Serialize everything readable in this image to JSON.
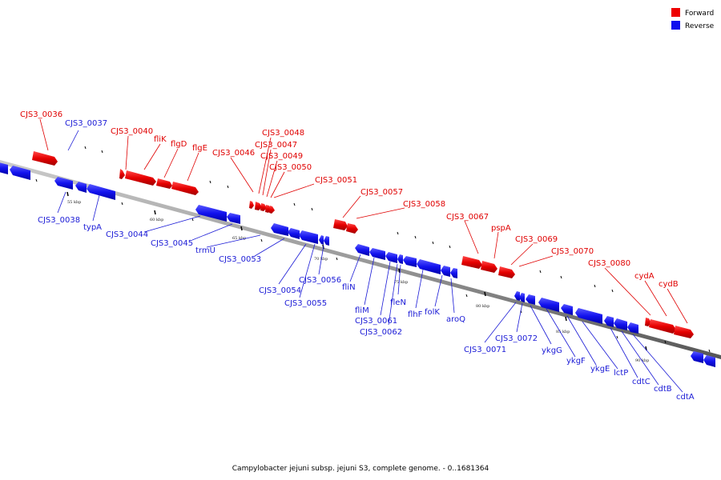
{
  "legend": {
    "forward_label": "Forward",
    "reverse_label": "Reverse",
    "forward_color": "#ee0000",
    "reverse_color": "#1010ee"
  },
  "caption": "Campylobacter jejuni subsp. jejuni S3, complete genome. - 0..1681364",
  "ticks": [
    "55 kbp",
    "60 kbp",
    "65 kbp",
    "70 kbp",
    "75 kbp",
    "80 kbp",
    "85 kbp",
    "90 kbp"
  ],
  "forward_genes": [
    "CJS3_0036",
    "CJS3_0040",
    "fliK",
    "flgD",
    "flgE",
    "CJS3_0046",
    "CJS3_0048",
    "CJS3_0047",
    "CJS3_0049",
    "CJS3_0050",
    "CJS3_0051",
    "CJS3_0057",
    "CJS3_0058",
    "CJS3_0067",
    "pspA",
    "CJS3_0069",
    "CJS3_0070",
    "CJS3_0080",
    "cydA",
    "cydB"
  ],
  "reverse_genes": [
    "CJS3_0037",
    "CJS3_0038",
    "typA",
    "CJS3_0044",
    "CJS3_0045",
    "trmU",
    "CJS3_0053",
    "CJS3_0054",
    "CJS3_0056",
    "CJS3_0055",
    "fliN",
    "fliM",
    "CJS3_0061",
    "CJS3_0062",
    "fleN",
    "flhF",
    "folK",
    "aroQ",
    "CJS3_0071",
    "CJS3_0072",
    "ykgG",
    "ykgF",
    "ykgE",
    "lctP",
    "cdtC",
    "cdtB",
    "cdtA"
  ]
}
